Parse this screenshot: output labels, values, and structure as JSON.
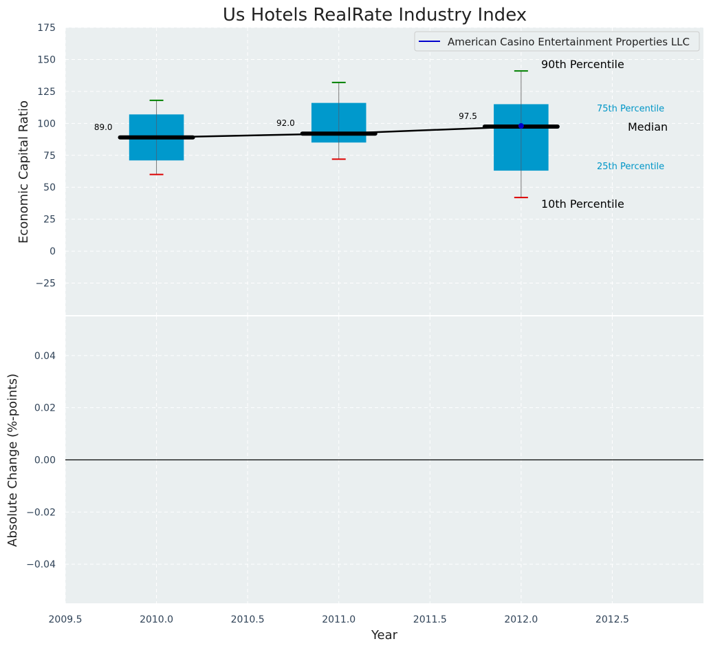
{
  "chart_data": [
    {
      "type": "box",
      "title": "Us Hotels RealRate Industry Index",
      "ylabel": "Economic Capital Ratio",
      "xlim": [
        2009.5,
        2013.0
      ],
      "ylim": [
        -50,
        175
      ],
      "yticks": [
        -25,
        0,
        25,
        50,
        75,
        100,
        125,
        150,
        175
      ],
      "grid": true,
      "legend": {
        "position": "top-right",
        "entries": [
          {
            "label": "American Casino Entertainment Properties LLC",
            "color": "#0000cc"
          }
        ]
      },
      "boxes": [
        {
          "x": 2010,
          "p10": 60,
          "p25": 71,
          "median": 89,
          "p75": 107,
          "p90": 118,
          "median_label": "89.0"
        },
        {
          "x": 2011,
          "p10": 72,
          "p25": 85,
          "median": 92,
          "p75": 116,
          "p90": 132,
          "median_label": "92.0"
        },
        {
          "x": 2012,
          "p10": 42,
          "p25": 63,
          "median": 97.5,
          "p75": 115,
          "p90": 141,
          "median_label": "97.5"
        }
      ],
      "median_line": {
        "x": [
          2010,
          2011,
          2012
        ],
        "y": [
          89,
          92,
          97.5
        ]
      },
      "company_points": {
        "x": [
          2012
        ],
        "y": [
          98
        ]
      },
      "annotations": {
        "p90": "90th Percentile",
        "p75": "75th Percentile",
        "median": "Median",
        "p25": "25th Percentile",
        "p10": "10th Percentile"
      },
      "colors": {
        "box": "#0099cc",
        "p90_cap": "#008000",
        "p10_cap": "#dd0000",
        "median": "#000000",
        "company": "#0000cc",
        "panel_bg": "#eaeff0"
      }
    },
    {
      "type": "line",
      "xlabel": "Year",
      "ylabel": "Absolute Change (%-points)",
      "xlim": [
        2009.5,
        2013.0
      ],
      "xticks": [
        2009.5,
        2010.0,
        2010.5,
        2011.0,
        2011.5,
        2012.0,
        2012.5
      ],
      "xtick_labels": [
        "2009.5",
        "2010.0",
        "2010.5",
        "2011.0",
        "2011.5",
        "2012.0",
        "2012.5"
      ],
      "ylim": [
        -0.055,
        0.055
      ],
      "yticks": [
        -0.04,
        -0.02,
        0.0,
        0.02,
        0.04
      ],
      "ytick_labels": [
        "−0.04",
        "−0.02",
        "0.00",
        "0.02",
        "0.04"
      ],
      "ytick_labels_top": [
        "−25",
        "0",
        "25",
        "50",
        "75",
        "100",
        "125",
        "150",
        "175"
      ],
      "zero_line": 0.0,
      "grid": true
    }
  ]
}
